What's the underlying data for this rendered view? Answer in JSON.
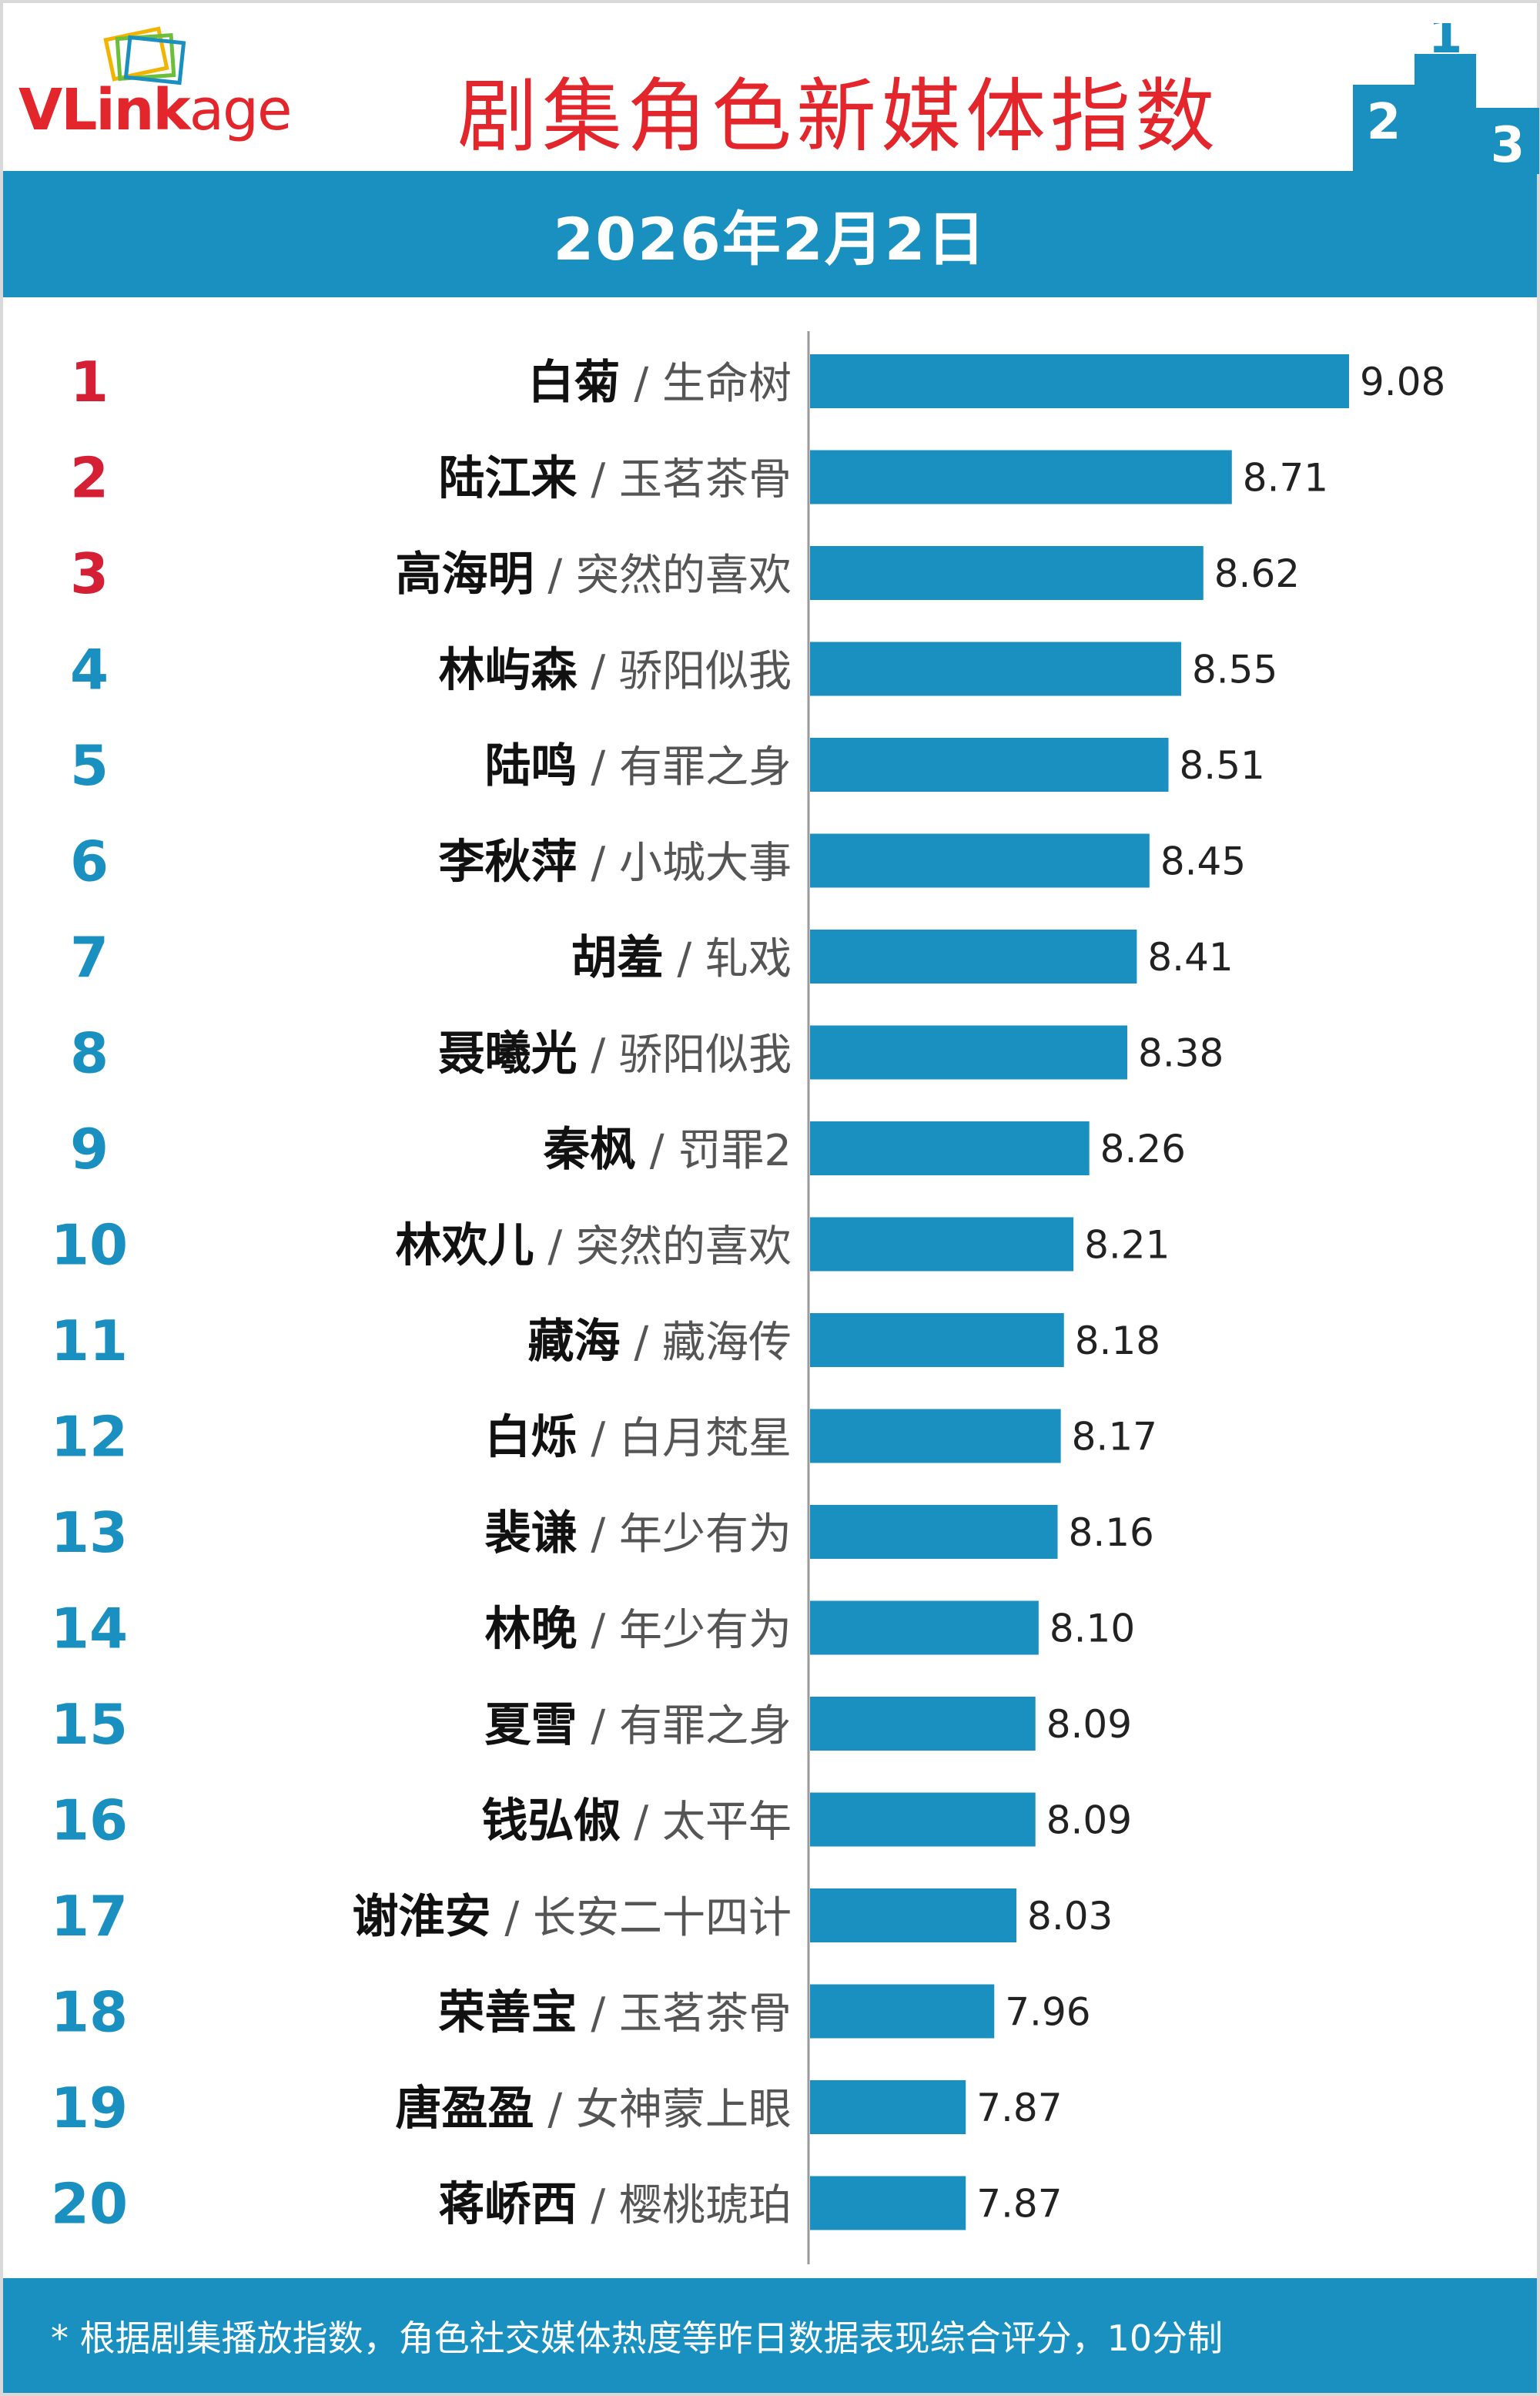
{
  "header": {
    "logo_text_v": "V",
    "logo_text_link": "Link",
    "logo_text_age": "age",
    "title": "剧集角色新媒体指数",
    "podium_labels": [
      "2",
      "1",
      "3"
    ]
  },
  "date": "2026年2月2日",
  "footer": {
    "note": "* 根据剧集播放指数，角色社交媒体热度等昨日数据表现综合评分，10分制"
  },
  "colors": {
    "brand_blue": "#1a90c0",
    "title_red": "#e3262b",
    "top_rank_red": "#d41f35",
    "rank_blue": "#1a90c0",
    "bar": "#1a90c0"
  },
  "chart_data": {
    "type": "bar",
    "orientation": "horizontal",
    "value_range": [
      0,
      10
    ],
    "grid": false,
    "legend": "none",
    "rows": [
      {
        "rank": "1",
        "name": "白菊",
        "show": "生命树",
        "value": 9.08,
        "value_label": "9.08"
      },
      {
        "rank": "2",
        "name": "陆江来",
        "show": "玉茗茶骨",
        "value": 8.71,
        "value_label": "8.71"
      },
      {
        "rank": "3",
        "name": "高海明",
        "show": "突然的喜欢",
        "value": 8.62,
        "value_label": "8.62"
      },
      {
        "rank": "4",
        "name": "林屿森",
        "show": "骄阳似我",
        "value": 8.55,
        "value_label": "8.55"
      },
      {
        "rank": "5",
        "name": "陆鸣",
        "show": "有罪之身",
        "value": 8.51,
        "value_label": "8.51"
      },
      {
        "rank": "6",
        "name": "李秋萍",
        "show": "小城大事",
        "value": 8.45,
        "value_label": "8.45"
      },
      {
        "rank": "7",
        "name": "胡羞",
        "show": "轧戏",
        "value": 8.41,
        "value_label": "8.41"
      },
      {
        "rank": "8",
        "name": "聂曦光",
        "show": "骄阳似我",
        "value": 8.38,
        "value_label": "8.38"
      },
      {
        "rank": "9",
        "name": "秦枫",
        "show": "罚罪2",
        "value": 8.26,
        "value_label": "8.26"
      },
      {
        "rank": "10",
        "name": "林欢儿",
        "show": "突然的喜欢",
        "value": 8.21,
        "value_label": "8.21"
      },
      {
        "rank": "11",
        "name": "藏海",
        "show": "藏海传",
        "value": 8.18,
        "value_label": "8.18"
      },
      {
        "rank": "12",
        "name": "白烁",
        "show": "白月梵星",
        "value": 8.17,
        "value_label": "8.17"
      },
      {
        "rank": "13",
        "name": "裴谦",
        "show": "年少有为",
        "value": 8.16,
        "value_label": "8.16"
      },
      {
        "rank": "14",
        "name": "林晚",
        "show": "年少有为",
        "value": 8.1,
        "value_label": "8.10"
      },
      {
        "rank": "15",
        "name": "夏雪",
        "show": "有罪之身",
        "value": 8.09,
        "value_label": "8.09"
      },
      {
        "rank": "16",
        "name": "钱弘俶",
        "show": "太平年",
        "value": 8.09,
        "value_label": "8.09"
      },
      {
        "rank": "17",
        "name": "谢淮安",
        "show": "长安二十四计",
        "value": 8.03,
        "value_label": "8.03"
      },
      {
        "rank": "18",
        "name": "荣善宝",
        "show": "玉茗茶骨",
        "value": 7.96,
        "value_label": "7.96"
      },
      {
        "rank": "19",
        "name": "唐盈盈",
        "show": "女神蒙上眼",
        "value": 7.87,
        "value_label": "7.87"
      },
      {
        "rank": "20",
        "name": "蒋峤西",
        "show": "樱桃琥珀",
        "value": 7.87,
        "value_label": "7.87"
      }
    ]
  }
}
